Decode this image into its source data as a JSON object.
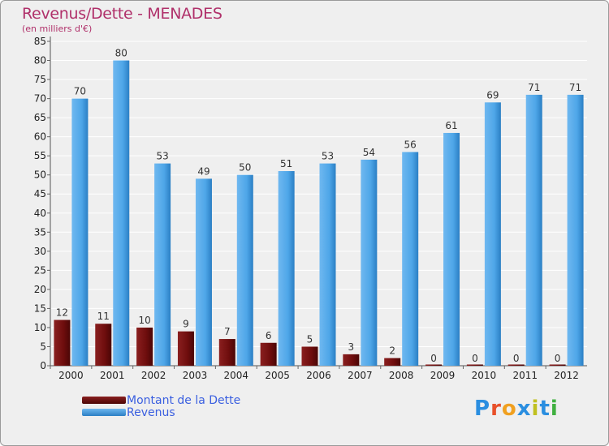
{
  "title": "Revenus/Dette - MENADES",
  "subtitle": "(en milliers d'€)",
  "logo": {
    "text": "Proxiti",
    "colors": [
      "#2a8ee0",
      "#e8502a",
      "#f0a020",
      "#2a8ee0",
      "#c0c020",
      "#2a8ee0",
      "#40b040"
    ]
  },
  "chart_data": {
    "type": "bar",
    "categories": [
      "2000",
      "2001",
      "2002",
      "2003",
      "2004",
      "2005",
      "2006",
      "2007",
      "2008",
      "2009",
      "2010",
      "2011",
      "2012"
    ],
    "series": [
      {
        "name": "Montant de la Dette",
        "color": "#7a0f0f",
        "values": [
          12,
          11,
          10,
          9,
          7,
          6,
          5,
          3,
          2,
          0,
          0,
          0,
          0
        ]
      },
      {
        "name": "Revenus",
        "color": "#4ea6e8",
        "values": [
          70,
          80,
          53,
          49,
          50,
          51,
          53,
          54,
          56,
          61,
          69,
          71,
          71
        ]
      }
    ],
    "y_ticks": [
      0,
      5,
      10,
      15,
      20,
      25,
      30,
      35,
      40,
      45,
      50,
      55,
      60,
      65,
      70,
      75,
      80,
      85
    ],
    "ylim": [
      0,
      85
    ],
    "grid": true,
    "legend": "bottom-left"
  }
}
